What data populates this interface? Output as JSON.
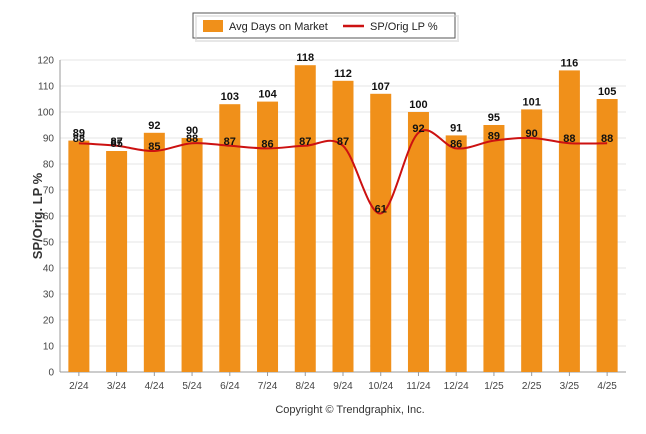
{
  "chart_data": {
    "type": "bar",
    "categories": [
      "2/24",
      "3/24",
      "4/24",
      "5/24",
      "6/24",
      "7/24",
      "8/24",
      "9/24",
      "10/24",
      "11/24",
      "12/24",
      "1/25",
      "2/25",
      "3/25",
      "4/25"
    ],
    "series": [
      {
        "name": "Avg Days on Market",
        "type": "bar",
        "color": "#f0901a",
        "values": [
          89,
          85,
          92,
          90,
          103,
          104,
          118,
          112,
          107,
          100,
          91,
          95,
          101,
          116,
          105
        ]
      },
      {
        "name": "SP/Orig LP %",
        "type": "line",
        "color": "#cc1111",
        "values": [
          88,
          87,
          85,
          88,
          87,
          86,
          87,
          87,
          61,
          92,
          86,
          89,
          90,
          88,
          88
        ]
      }
    ],
    "ylabel": "SP/Orig. LP %",
    "ylim": [
      0,
      120
    ],
    "yticks": [
      0,
      10,
      20,
      30,
      40,
      50,
      60,
      70,
      80,
      90,
      100,
      110,
      120
    ],
    "grid": true,
    "legend_position": "top-center"
  },
  "footer": {
    "copyright": "Copyright © Trendgraphix, Inc."
  }
}
